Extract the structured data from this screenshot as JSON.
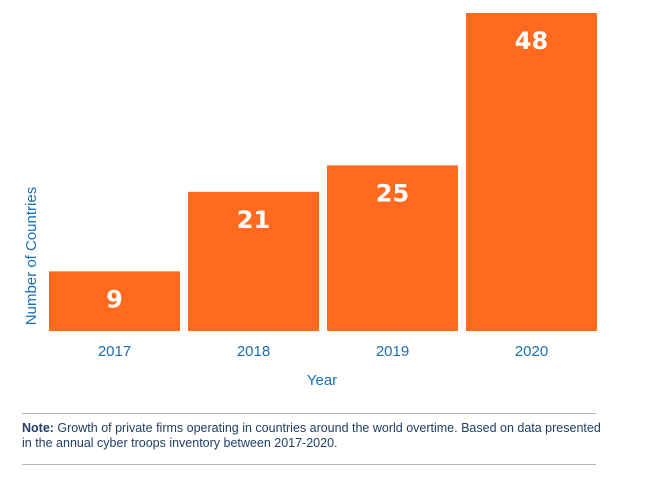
{
  "chart_data": {
    "type": "bar",
    "categories": [
      "2017",
      "2018",
      "2019",
      "2020"
    ],
    "values": [
      9,
      21,
      25,
      48
    ],
    "data_labels": [
      "9",
      "21",
      "25",
      "48"
    ],
    "xlabel": "Year",
    "ylabel": "Number of Countries",
    "ylim": [
      0,
      48
    ],
    "grid": false,
    "bar_color": "#ff6a1f",
    "text_color": "#1a6fb5"
  },
  "note": {
    "label": "Note:",
    "text": " Growth of private firms operating in countries around the world overtime. Based on data presented in the annual cyber troops inventory between 2017-2020."
  }
}
